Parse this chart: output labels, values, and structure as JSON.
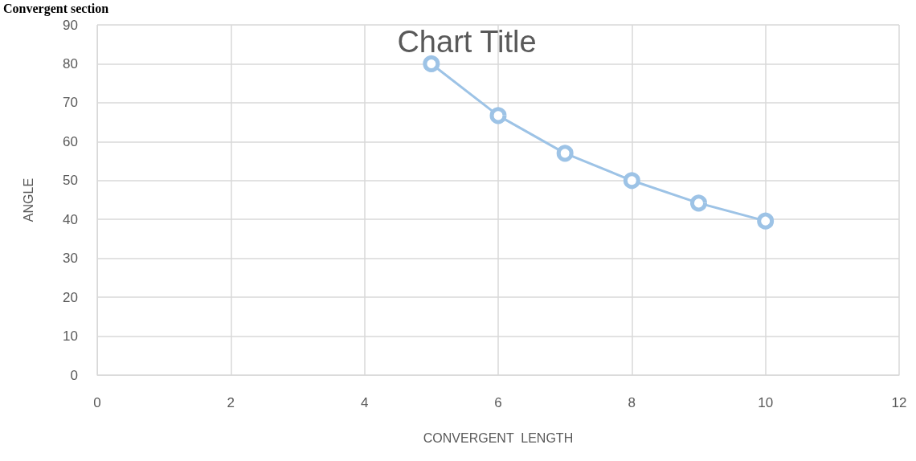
{
  "chart_data": {
    "type": "line",
    "title": "Chart Title",
    "xlabel": "CONVERGENT  LENGTH",
    "ylabel": "ANGLE",
    "annotations": [
      "Convergent section"
    ],
    "x": [
      5,
      6,
      7,
      8,
      9,
      10
    ],
    "series": [
      {
        "color": "#9dc3e6",
        "values": [
          80,
          66.7,
          57,
          50,
          44.2,
          39.6
        ]
      }
    ],
    "xlim": [
      0,
      12
    ],
    "xticks": [
      0,
      2,
      4,
      6,
      8,
      10,
      12
    ],
    "ylim": [
      0,
      90
    ],
    "yticks": [
      0,
      10,
      20,
      30,
      40,
      50,
      60,
      70,
      80,
      90
    ],
    "grid": true,
    "marker": "circle",
    "line_style": "solid"
  }
}
